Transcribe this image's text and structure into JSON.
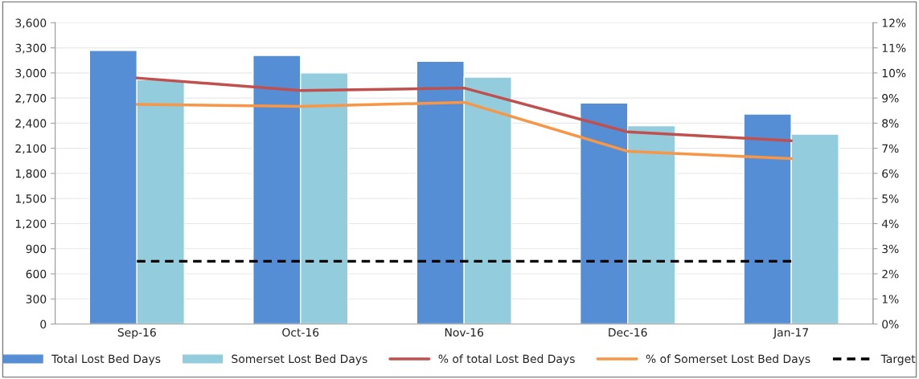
{
  "chart_data": {
    "type": "bar",
    "categories": [
      "Sep-16",
      "Oct-16",
      "Nov-16",
      "Dec-16",
      "Jan-17"
    ],
    "series": [
      {
        "name": "Total Lost Bed Days",
        "color": "#558ed5",
        "values": [
          3270,
          3210,
          3140,
          2640,
          2510
        ]
      },
      {
        "name": "Somerset Lost Bed Days",
        "color": "#93cddd",
        "values": [
          2920,
          3000,
          2950,
          2370,
          2270
        ]
      },
      {
        "name": "% of total Lost Bed Days",
        "type": "line",
        "axis": "y2",
        "color": "#c0504d",
        "values": [
          9.8,
          9.3,
          9.4,
          7.65,
          7.3
        ]
      },
      {
        "name": "% of Somerset Lost Bed Days",
        "type": "line",
        "axis": "y2",
        "color": "#f79646",
        "values": [
          8.75,
          8.67,
          8.83,
          6.88,
          6.59
        ]
      },
      {
        "name": "Target",
        "type": "line",
        "axis": "y2",
        "color": "#000000",
        "line_style": "dashed",
        "values": [
          2.5,
          2.5,
          2.5,
          2.5,
          2.5
        ]
      }
    ],
    "ylim": [
      0,
      3600
    ],
    "yticks": [
      {
        "value": 0,
        "label": "0"
      },
      {
        "value": 300,
        "label": "300"
      },
      {
        "value": 600,
        "label": "600"
      },
      {
        "value": 900,
        "label": "900"
      },
      {
        "value": 1200,
        "label": "1,200"
      },
      {
        "value": 1500,
        "label": "1,500"
      },
      {
        "value": 1800,
        "label": "1,800"
      },
      {
        "value": 2100,
        "label": "2,100"
      },
      {
        "value": 2400,
        "label": "2,400"
      },
      {
        "value": 2700,
        "label": "2,700"
      },
      {
        "value": 3000,
        "label": "3,000"
      },
      {
        "value": 3300,
        "label": "3,300"
      },
      {
        "value": 3600,
        "label": "3,600"
      }
    ],
    "y2lim": [
      0,
      12
    ],
    "y2ticks": [
      {
        "value": 0,
        "label": "0%"
      },
      {
        "value": 1,
        "label": "1%"
      },
      {
        "value": 2,
        "label": "2%"
      },
      {
        "value": 3,
        "label": "3%"
      },
      {
        "value": 4,
        "label": "4%"
      },
      {
        "value": 5,
        "label": "5%"
      },
      {
        "value": 6,
        "label": "6%"
      },
      {
        "value": 7,
        "label": "7%"
      },
      {
        "value": 8,
        "label": "8%"
      },
      {
        "value": 9,
        "label": "9%"
      },
      {
        "value": 10,
        "label": "10%"
      },
      {
        "value": 11,
        "label": "11%"
      },
      {
        "value": 12,
        "label": "12%"
      }
    ],
    "grid": "y",
    "legend": "bottom",
    "marker": "none"
  }
}
